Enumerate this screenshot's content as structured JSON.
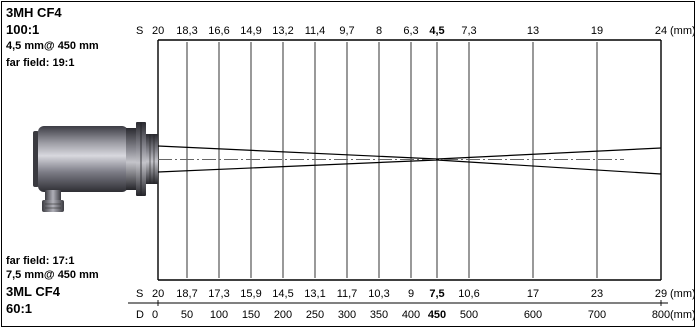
{
  "top_model": {
    "name": "3MH CF4",
    "ratio": "100:1",
    "spot": "4,5 mm@ 450 mm",
    "far_field": "far field: 19:1"
  },
  "bottom_model": {
    "far_field": "far field: 17:1",
    "spot": "7,5 mm@ 450 mm",
    "name": "3ML CF4",
    "ratio": "60:1"
  },
  "unit": "(mm)",
  "top_scale": {
    "label": "S",
    "values": [
      "20",
      "18,3",
      "16,6",
      "14,9",
      "13,2",
      "11,4",
      "9,7",
      "8",
      "6,3",
      "4,5",
      "7,3",
      "13",
      "19",
      "24"
    ],
    "bold_index": 9
  },
  "bottom_scale": {
    "label": "S",
    "values": [
      "20",
      "18,7",
      "17,3",
      "15,9",
      "14,5",
      "13,1",
      "11,7",
      "10,3",
      "9",
      "7,5",
      "10,6",
      "17",
      "23",
      "29"
    ],
    "bold_index": 9
  },
  "distance_scale": {
    "label": "D",
    "values": [
      "0",
      "50",
      "100",
      "150",
      "200",
      "250",
      "300",
      "350",
      "400",
      "450",
      "500",
      "600",
      "700",
      "800"
    ],
    "bold_index": 9
  }
}
